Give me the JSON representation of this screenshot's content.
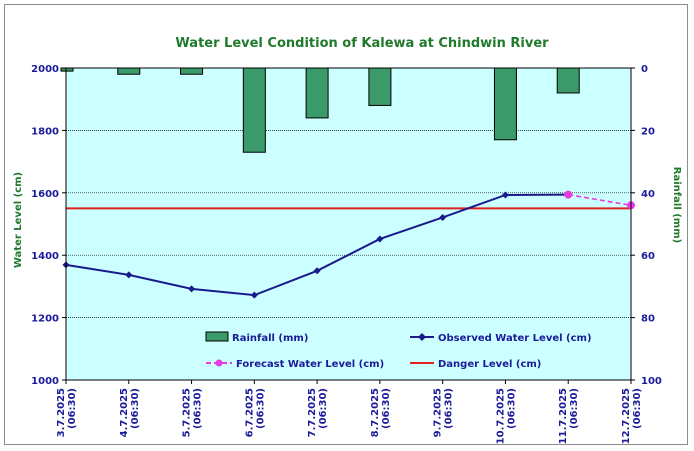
{
  "chart_data": {
    "type": "bar+line",
    "title": "Water Level Condition of Kalewa at Chindwin River",
    "ylabel_left": "Water Level (cm)",
    "ylabel_right": "Rainfall (mm)",
    "ylim_left": [
      1000,
      2000
    ],
    "yticks_left": [
      "1000",
      "1200",
      "1400",
      "1600",
      "1800",
      "2000"
    ],
    "ylim_right": [
      0,
      100
    ],
    "yticks_right": [
      "0",
      "20",
      "40",
      "60",
      "80",
      "100"
    ],
    "right_axis_inverted": true,
    "categories": [
      [
        "3.7.2025",
        "(06:30)"
      ],
      [
        "4.7.2025",
        "(06:30)"
      ],
      [
        "5.7.2025",
        "(06:30)"
      ],
      [
        "6.7.2025",
        "(06:30)"
      ],
      [
        "7.7.2025",
        "(06:30)"
      ],
      [
        "8.7.2025",
        "(06:30)"
      ],
      [
        "9.7.2025",
        "(06:30)"
      ],
      [
        "10.7.2025",
        "(06:30)"
      ],
      [
        "11.7.2025",
        "(06:30)"
      ],
      [
        "12.7.2025",
        "(06:30)"
      ]
    ],
    "series": [
      {
        "name": "Rainfall (mm)",
        "kind": "bar",
        "axis": "right",
        "color": "#3a9a6a",
        "values": [
          1,
          2,
          2,
          27,
          16,
          12,
          0,
          23,
          8,
          null
        ]
      },
      {
        "name": "Observed Water Level (cm)",
        "kind": "line",
        "axis": "left",
        "color": "#1a1a8c",
        "values": [
          1369,
          1337,
          1292,
          1272,
          1350,
          1452,
          1521,
          1593,
          1594,
          null
        ]
      },
      {
        "name": "Forecast Water Level (cm)",
        "kind": "line-dashed",
        "axis": "left",
        "color": "#e83ae0",
        "values": [
          null,
          null,
          null,
          null,
          null,
          null,
          null,
          null,
          1594,
          1560
        ]
      },
      {
        "name": "Danger Level (cm)",
        "kind": "hline",
        "axis": "left",
        "color": "#e0201c",
        "value": 1550
      }
    ],
    "grid": true,
    "plot_background": "#ccffff"
  }
}
